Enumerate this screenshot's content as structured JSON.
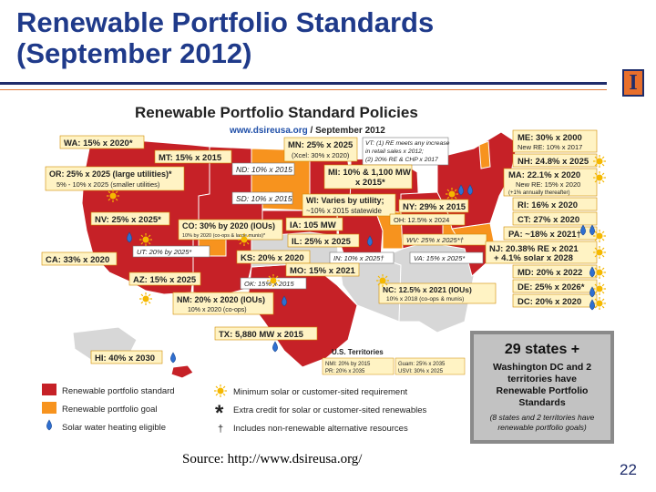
{
  "slide": {
    "title_line1": "Renewable Portfolio Standards",
    "title_line2": "(September 2012)",
    "logo_letter": "I",
    "source": "Source: http://www.dsireusa.org/",
    "page_number": "22"
  },
  "map": {
    "title": "Renewable Portfolio Standard Policies",
    "subtitle_site": "www.dsireusa.org",
    "subtitle_date": " / September 2012",
    "colors": {
      "standard": "#c62127",
      "goal": "#f7931e",
      "none": "#d7d7d7",
      "label_bg": "#fff3c4"
    },
    "labels": {
      "wa": "WA: 15% x 2020*",
      "mt": "MT: 15% x 2015",
      "mn_1": "MN: 25% x 2025",
      "mn_2": "(Xcel: 30% x 2020)",
      "vt_1": "VT: (1) RE meets any increase",
      "vt_2": "in retail sales x 2012;",
      "vt_3": "(2) 20% RE & CHP x 2017",
      "me_1": "ME: 30% x 2000",
      "me_2": "New RE: 10% x 2017",
      "nd": "ND: 10% x 2015",
      "mi_1": "MI: 10% & 1,100 MW",
      "mi_2": "x 2015*",
      "nh": "NH: 24.8% x 2025",
      "or_1": "OR: 25% x 2025 (large utilities)*",
      "or_2": "5% - 10% x 2025 (smaller utilities)",
      "ma_1": "MA: 22.1% x 2020",
      "ma_2": "New RE: 15% x 2020",
      "ma_3": "(+1% annually thereafter)",
      "sd": "SD: 10% x 2015",
      "wi_1": "WI: Varies by utility;",
      "wi_2": "~10% x 2015 statewide",
      "ny": "NY: 29% x 2015",
      "ri": "RI: 16% x 2020",
      "oh": "OH: 12.5% x 2024",
      "ct": "CT: 27% x 2020",
      "nv": "NV: 25% x 2025*",
      "co_1": "CO: 30% by 2020 (IOUs)",
      "co_2": "10% by 2020 (co-ops & large munis)*",
      "ia": "IA: 105 MW",
      "pa": "PA: ~18% x 2021†",
      "il": "IL: 25% x 2025",
      "wv": "WV: 25% x 2025*†",
      "ut": "UT: 20% by 2025*",
      "nj_1": "NJ: 20.38% RE x 2021",
      "nj_2": "+ 4.1% solar x 2028",
      "ca": "CA: 33% x 2020",
      "ks": "KS: 20% x 2020",
      "in": "IN: 10% x 2025†",
      "va": "VA: 15% x 2025*",
      "md": "MD: 20% x 2022",
      "mo": "MO: 15% x 2021",
      "az": "AZ: 15% x 2025",
      "ok": "OK: 15% x 2015",
      "de": "DE: 25% x 2026*",
      "nc_1": "NC: 12.5% x 2021 (IOUs)",
      "nc_2": "10% x 2018 (co-ops & munis)",
      "dc": "DC: 20% x 2020",
      "nm_1": "NM: 20% x 2020 (IOUs)",
      "nm_2": "10% x 2020 (co-ops)",
      "tx": "TX: 5,880 MW x 2015",
      "hi": "HI: 40% x 2030",
      "territories_title": "U.S. Territories",
      "nmi": "NMI: 20% by 2015",
      "pr": "PR: 20% x 2035",
      "guam": "Guam: 25% x 2035",
      "usvi": "USVI: 30% x 2025"
    },
    "legend": {
      "standard": "Renewable portfolio standard",
      "goal": "Renewable portfolio goal",
      "solar_water": "Solar water heating eligible",
      "min_solar": "Minimum solar or customer-sited requirement",
      "credit": "Extra credit for solar or customer-sited renewables",
      "non_renewable": "Includes non-renewable alternative resources",
      "asterisk_symbol": "*",
      "dagger_symbol": "†"
    },
    "summary": {
      "line1": "29 states +",
      "line2": "Washington DC and 2",
      "line3": "territories have",
      "line4": "Renewable Portfolio",
      "line5": "Standards",
      "line6": "(8 states and 2 territories have",
      "line7": "renewable portfolio goals)"
    }
  }
}
